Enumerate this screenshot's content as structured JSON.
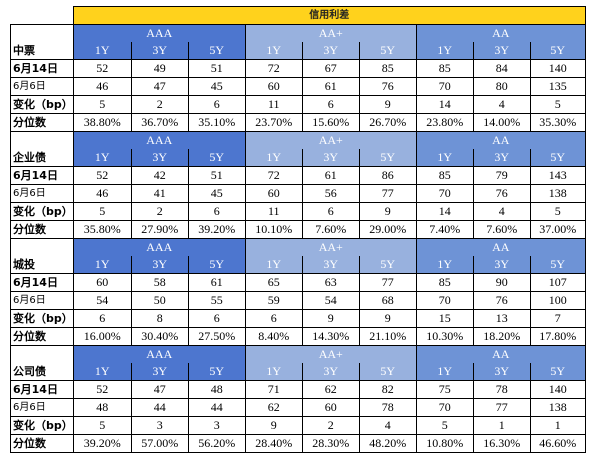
{
  "title": "信用利差",
  "groups": [
    "AAA",
    "AA+",
    "AA"
  ],
  "tenors": [
    "1Y",
    "3Y",
    "5Y"
  ],
  "row_labels": [
    "6月14日",
    "6月6日",
    "变化（bp）",
    "分位数"
  ],
  "sections": [
    {
      "name": "中票",
      "rows": [
        [
          "52",
          "49",
          "51",
          "72",
          "67",
          "85",
          "85",
          "84",
          "140"
        ],
        [
          "46",
          "47",
          "45",
          "60",
          "61",
          "76",
          "70",
          "80",
          "135"
        ],
        [
          "5",
          "2",
          "6",
          "11",
          "6",
          "9",
          "14",
          "4",
          "5"
        ],
        [
          "38.80%",
          "36.70%",
          "35.10%",
          "23.70%",
          "15.60%",
          "26.70%",
          "23.80%",
          "14.00%",
          "35.30%"
        ]
      ]
    },
    {
      "name": "企业债",
      "rows": [
        [
          "52",
          "42",
          "51",
          "72",
          "61",
          "86",
          "85",
          "79",
          "143"
        ],
        [
          "46",
          "41",
          "45",
          "60",
          "56",
          "77",
          "70",
          "76",
          "138"
        ],
        [
          "5",
          "2",
          "6",
          "11",
          "6",
          "9",
          "14",
          "4",
          "5"
        ],
        [
          "35.80%",
          "27.90%",
          "39.20%",
          "10.10%",
          "7.60%",
          "29.00%",
          "7.40%",
          "7.60%",
          "37.00%"
        ]
      ]
    },
    {
      "name": "城投",
      "rows": [
        [
          "60",
          "58",
          "61",
          "65",
          "63",
          "77",
          "85",
          "90",
          "107"
        ],
        [
          "54",
          "50",
          "55",
          "59",
          "54",
          "68",
          "70",
          "76",
          "100"
        ],
        [
          "6",
          "8",
          "6",
          "6",
          "9",
          "9",
          "15",
          "13",
          "7"
        ],
        [
          "16.00%",
          "30.40%",
          "27.50%",
          "8.40%",
          "14.30%",
          "21.10%",
          "10.30%",
          "18.20%",
          "17.80%"
        ]
      ]
    },
    {
      "name": "公司债",
      "rows": [
        [
          "52",
          "47",
          "48",
          "71",
          "62",
          "82",
          "75",
          "78",
          "140"
        ],
        [
          "48",
          "44",
          "44",
          "62",
          "60",
          "78",
          "70",
          "77",
          "138"
        ],
        [
          "5",
          "3",
          "3",
          "9",
          "2",
          "4",
          "5",
          "1",
          "1"
        ],
        [
          "39.20%",
          "57.00%",
          "56.20%",
          "28.40%",
          "28.30%",
          "48.20%",
          "10.80%",
          "16.30%",
          "46.60%"
        ]
      ]
    }
  ],
  "colors": {
    "title_bg": "#ffd21c",
    "aaa_header": "#4d76cf",
    "aa_plus_header": "#98b1de",
    "aa_header": "#6e93d6"
  }
}
